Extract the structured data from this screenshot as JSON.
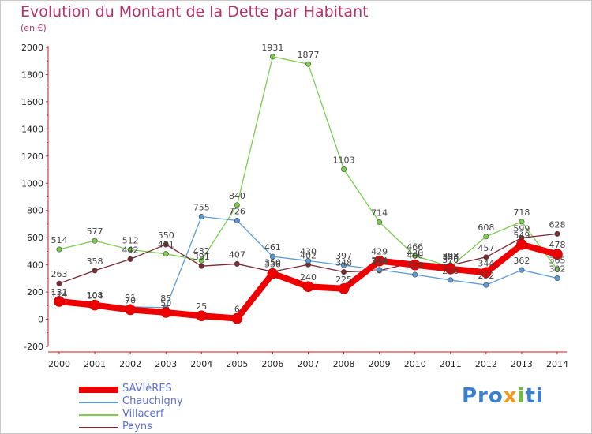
{
  "title": "Evolution du Montant de la Dette par Habitant",
  "unit": "(en €)",
  "logo": {
    "text": "Proxiti",
    "colors": [
      "#3b7fd1",
      "#f39a1e",
      "#6cbf3a",
      "#3b7fd1"
    ]
  },
  "chart_data": {
    "type": "line",
    "title": "Evolution du Montant de la Dette par Habitant",
    "subtitle": "(en €)",
    "xlabel": "",
    "ylabel": "",
    "categories": [
      "2000",
      "2001",
      "2002",
      "2003",
      "2004",
      "2005",
      "2006",
      "2007",
      "2008",
      "2009",
      "2010",
      "2011",
      "2012",
      "2013",
      "2014"
    ],
    "ylim": [
      -200,
      2000
    ],
    "yticks": [
      -200,
      0,
      200,
      400,
      600,
      800,
      1000,
      1200,
      1400,
      1600,
      1800,
      2000
    ],
    "grid": false,
    "legend_position": "bottom-left",
    "series": [
      {
        "name": "SAVIèRES",
        "color": "#ee0000",
        "values": [
          131,
          104,
          70,
          50,
          25,
          6,
          336,
          240,
          225,
          429,
          400,
          370,
          344,
          549,
          478
        ]
      },
      {
        "name": "Chauchigny",
        "color": "#5b9bd5",
        "values": [
          114,
          108,
          91,
          85,
          755,
          726,
          461,
          430,
          397,
          364,
          328,
          288,
          252,
          362,
          302
        ]
      },
      {
        "name": "Villacerf",
        "color": "#7ccd4e",
        "values": [
          514,
          577,
          512,
          481,
          432,
          840,
          1931,
          1877,
          1103,
          714,
          466,
          386,
          608,
          718,
          365
        ]
      },
      {
        "name": "Payns",
        "color": "#7a2a33",
        "values": [
          263,
          358,
          442,
          550,
          391,
          407,
          350,
          402,
          348,
          358,
          420,
          398,
          457,
          599,
          628
        ]
      }
    ]
  }
}
